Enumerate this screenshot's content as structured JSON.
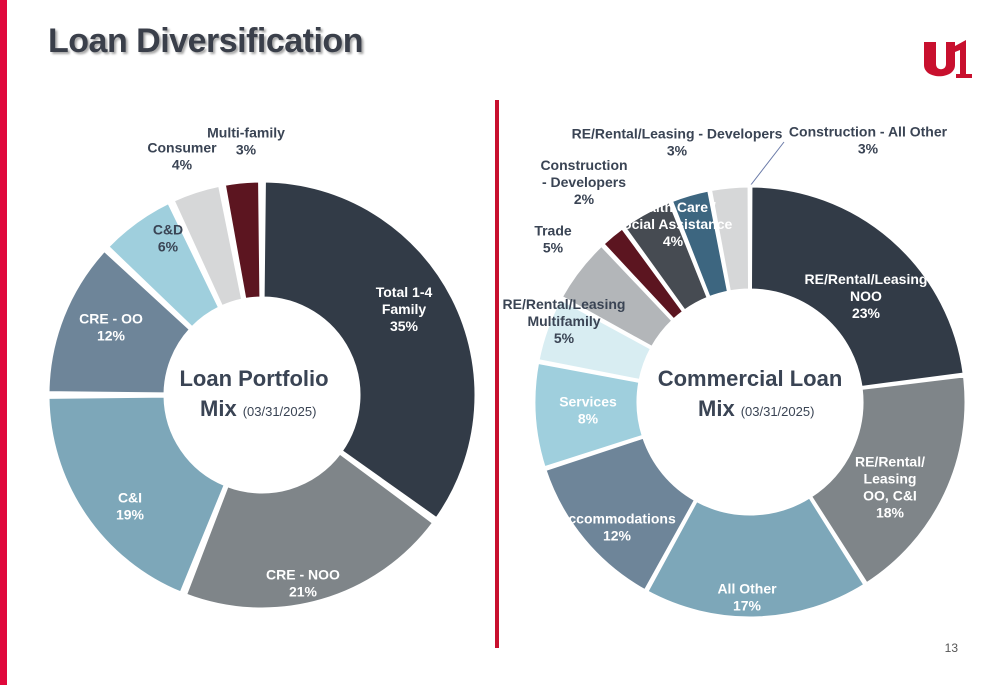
{
  "slide": {
    "title": "Loan Diversification",
    "page_number": "13",
    "logo_text": "u1",
    "accent_color": "#e0093c",
    "logo_color": "#c8102e"
  },
  "chart_data": [
    {
      "type": "donut",
      "center_title_line1": "Loan Portfolio",
      "center_title_line2": "Mix",
      "center_date": "(03/31/2025)",
      "segments": [
        {
          "label_lines": [
            "Total 1-4",
            "Family",
            "35%"
          ],
          "value": 35,
          "color": "#323b47",
          "label_color": "#ffffff"
        },
        {
          "label_lines": [
            "CRE - NOO",
            "21%"
          ],
          "value": 21,
          "color": "#7f8589",
          "label_color": "#ffffff"
        },
        {
          "label_lines": [
            "C&I",
            "19%"
          ],
          "value": 19,
          "color": "#7da7b9",
          "label_color": "#ffffff"
        },
        {
          "label_lines": [
            "CRE - OO",
            "12%"
          ],
          "value": 12,
          "color": "#6e8599",
          "label_color": "#ffffff"
        },
        {
          "label_lines": [
            "C&D",
            "6%"
          ],
          "value": 6,
          "color": "#9fcfdd",
          "label_color": "#3a4454"
        },
        {
          "label_lines": [
            "Consumer",
            "4%"
          ],
          "value": 4,
          "color": "#d6d7d8",
          "label_color": "#3a4454"
        },
        {
          "label_lines": [
            "Multi-family",
            "3%"
          ],
          "value": 3,
          "color": "#5c1520",
          "label_color": "#3a4454"
        }
      ]
    },
    {
      "type": "donut",
      "center_title_line1": "Commercial Loan",
      "center_title_line2": "Mix",
      "center_date": "(03/31/2025)",
      "segments": [
        {
          "label_lines": [
            "RE/Rental/Leasing",
            "NOO",
            "23%"
          ],
          "value": 23,
          "color": "#323b47",
          "label_color": "#ffffff"
        },
        {
          "label_lines": [
            "RE/Rental/",
            "Leasing",
            "OO, C&I",
            "18%"
          ],
          "value": 18,
          "color": "#7f8589",
          "label_color": "#ffffff"
        },
        {
          "label_lines": [
            "All Other",
            "17%"
          ],
          "value": 17,
          "color": "#7da7b9",
          "label_color": "#ffffff"
        },
        {
          "label_lines": [
            "Accommodations",
            "12%"
          ],
          "value": 12,
          "color": "#6e8599",
          "label_color": "#ffffff"
        },
        {
          "label_lines": [
            "Services",
            "8%"
          ],
          "value": 8,
          "color": "#9fcfdd",
          "label_color": "#ffffff"
        },
        {
          "label_lines": [
            "RE/Rental/Leasing",
            "Multifamily",
            "5%"
          ],
          "value": 5,
          "color": "#d8edf2",
          "label_color": "#3a4454"
        },
        {
          "label_lines": [
            "Trade",
            "5%"
          ],
          "value": 5,
          "color": "#b3b6b9",
          "label_color": "#3a4454"
        },
        {
          "label_lines": [
            "Construction",
            "- Developers",
            "2%"
          ],
          "value": 2,
          "color": "#5c1520",
          "label_color": "#3a4454"
        },
        {
          "label_lines": [
            "Health Care /",
            "Social Assistance",
            "4%"
          ],
          "value": 4,
          "color": "#464b52",
          "label_color": "#ffffff"
        },
        {
          "label_lines": [
            "RE/Rental/Leasing - Developers",
            "3%"
          ],
          "value": 3,
          "color": "#3d6680",
          "label_color": "#3a4454"
        },
        {
          "label_lines": [
            "Construction - All Other",
            "3%"
          ],
          "value": 3,
          "color": "#d6d7d8",
          "label_color": "#3a4454"
        }
      ]
    }
  ]
}
